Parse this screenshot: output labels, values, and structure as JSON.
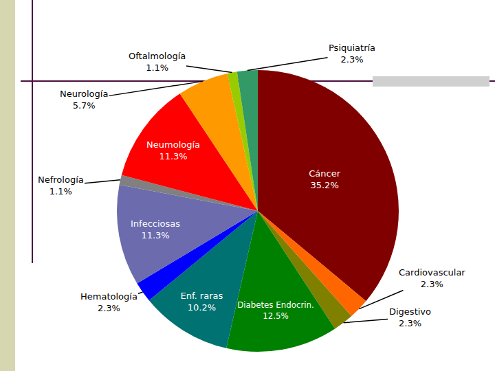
{
  "chart_data": {
    "type": "pie",
    "categories": [
      "Cáncer",
      "Cardiovascular",
      "Digestivo",
      "Diabetes Endocrin.",
      "Enf. raras",
      "Hematología",
      "Infecciosas",
      "Nefrología",
      "Neumología",
      "Neurología",
      "Oftalmología",
      "Psiquiatría"
    ],
    "values": [
      35.2,
      2.3,
      2.3,
      12.5,
      10.2,
      2.3,
      11.3,
      1.1,
      11.3,
      5.7,
      1.1,
      2.3
    ],
    "value_labels": [
      "35.2%",
      "2.3%",
      "2.3%",
      "12.5%",
      "10.2%",
      "2.3%",
      "11.3%",
      "1.1%",
      "11.3%",
      "5.7%",
      "1.1%",
      "2.3%"
    ],
    "colors": [
      "#800000",
      "#ff6600",
      "#808000",
      "#008000",
      "#007272",
      "#0000ff",
      "#6b6bae",
      "#808080",
      "#ff0000",
      "#ff9900",
      "#99cc00",
      "#339966"
    ],
    "data_labels": true
  }
}
